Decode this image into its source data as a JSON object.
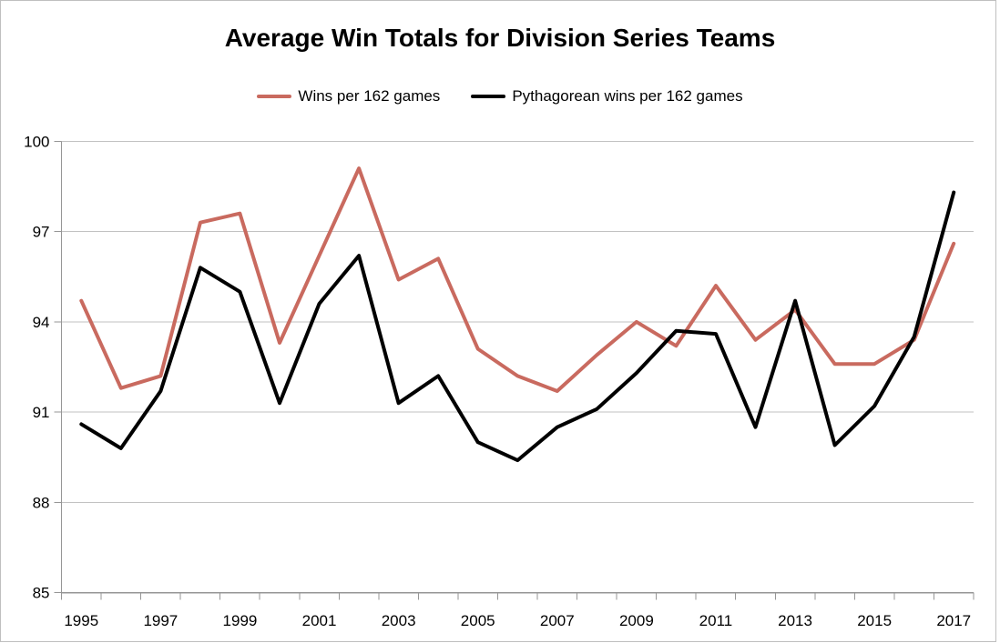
{
  "chart_data": {
    "type": "line",
    "title": "Average Win Totals for Division Series Teams",
    "x": [
      1995,
      1996,
      1997,
      1998,
      1999,
      2000,
      2001,
      2002,
      2003,
      2004,
      2005,
      2006,
      2007,
      2008,
      2009,
      2010,
      2011,
      2012,
      2013,
      2014,
      2015,
      2016,
      2017
    ],
    "xtick_labels": [
      "1995",
      "1997",
      "1999",
      "2001",
      "2003",
      "2005",
      "2007",
      "2009",
      "2011",
      "2013",
      "2015",
      "2017"
    ],
    "ylim": [
      85,
      100
    ],
    "yticks": [
      85,
      88,
      91,
      94,
      97,
      100
    ],
    "grid": "horizontal-only",
    "legend_position": "top-center",
    "axis_color": "#969696",
    "gridline_color": "#c2c2c2",
    "series": [
      {
        "name": "Wins per 162 games",
        "color": "#C96A5F",
        "values": [
          94.7,
          91.8,
          92.2,
          97.3,
          97.6,
          93.3,
          96.2,
          99.1,
          95.4,
          96.1,
          93.1,
          92.2,
          91.7,
          92.9,
          94.0,
          93.2,
          95.2,
          93.4,
          94.4,
          92.6,
          92.6,
          93.4,
          96.6
        ]
      },
      {
        "name": "Pythagorean wins per 162 games",
        "color": "#000000",
        "values": [
          90.6,
          89.8,
          91.7,
          95.8,
          95.0,
          91.3,
          94.6,
          96.2,
          91.3,
          92.2,
          90.0,
          89.4,
          90.5,
          91.1,
          92.3,
          93.7,
          93.6,
          90.5,
          94.7,
          89.9,
          91.2,
          93.5,
          98.3
        ]
      }
    ]
  }
}
